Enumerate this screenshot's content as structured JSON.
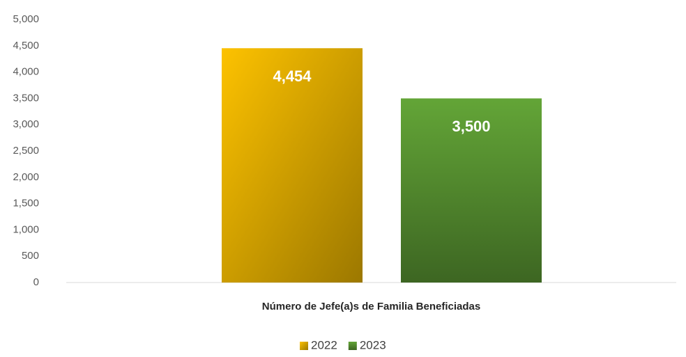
{
  "chart_data": {
    "type": "bar",
    "categories": [
      "Número de Jefe(a)s de Familia Beneficiadas"
    ],
    "series": [
      {
        "name": "2022",
        "color": "#e6b000",
        "values": [
          4454
        ],
        "value_labels": [
          "4,454"
        ]
      },
      {
        "name": "2023",
        "color": "#5a9632",
        "values": [
          3500
        ],
        "value_labels": [
          "3,500"
        ]
      }
    ],
    "ylim": [
      0,
      5000
    ],
    "yticks": [
      0,
      500,
      {
        "value": 1000,
        "label": "1,000"
      },
      {
        "value": 1500,
        "label": "1,500"
      },
      {
        "value": 2000,
        "label": "2,000"
      },
      {
        "value": 2500,
        "label": "2,500"
      },
      {
        "value": 3000,
        "label": "3,000"
      },
      {
        "value": 3500,
        "label": "3,500"
      },
      {
        "value": 4000,
        "label": "4,000"
      },
      {
        "value": 4500,
        "label": "4,500"
      },
      {
        "value": 5000,
        "label": "5,000"
      }
    ],
    "grid": false
  }
}
